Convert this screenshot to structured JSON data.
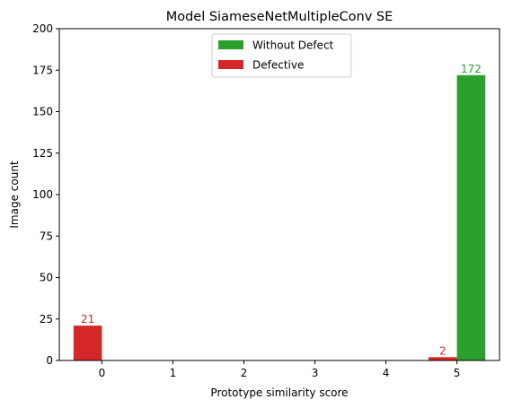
{
  "chart_data": {
    "type": "bar",
    "title": "Model SiameseNetMultipleConv SE",
    "xlabel": "Prototype similarity score",
    "ylabel": "Image count",
    "categories": [
      "0",
      "1",
      "2",
      "3",
      "4",
      "5"
    ],
    "x": [
      0,
      1,
      2,
      3,
      4,
      5
    ],
    "xlim": [
      -0.6,
      5.6
    ],
    "ylim": [
      0,
      200
    ],
    "yticks": [
      0,
      25,
      50,
      75,
      100,
      125,
      150,
      175,
      200
    ],
    "series": [
      {
        "name": "Without Defect",
        "color": "#2ca02c",
        "values": [
          0,
          0,
          0,
          0,
          0,
          172
        ]
      },
      {
        "name": "Defective",
        "color": "#d62728",
        "values": [
          21,
          0,
          0,
          0,
          0,
          2
        ]
      }
    ],
    "data_labels": [
      {
        "series": "Defective",
        "x": 0,
        "text": "21"
      },
      {
        "series": "Defective",
        "x": 5,
        "text": "2"
      },
      {
        "series": "Without Defect",
        "x": 5,
        "text": "172"
      }
    ],
    "legend": {
      "position": "top-center"
    },
    "grid": false
  }
}
